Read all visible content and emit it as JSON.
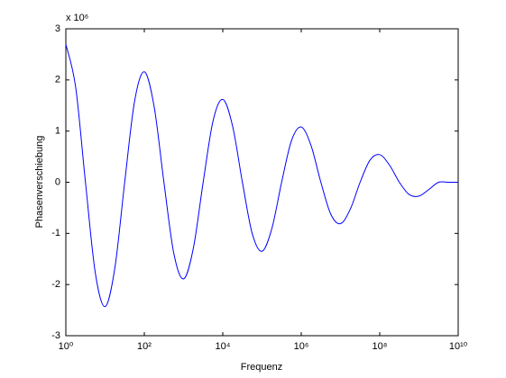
{
  "chart_data": {
    "type": "line",
    "xlabel": "Frequenz",
    "ylabel": "Phasenverschiebung",
    "y_multiplier": "x 10⁶",
    "xscale": "log",
    "color": "#0000ff",
    "x": [
      1,
      1.778,
      3.162,
      5.623,
      10,
      17.78,
      31.62,
      56.23,
      100,
      177.8,
      316.2,
      562.3,
      1000,
      1778,
      3162,
      5623,
      10000,
      17783,
      31623,
      56234,
      100000,
      177828,
      316228,
      562341,
      1000000,
      1778279,
      3162278,
      5623413,
      10000000,
      17782794,
      31622777,
      56234133,
      100000000,
      177827941,
      316227766,
      562341325,
      1000000000,
      1778279410,
      3162277660,
      5623413252,
      10000000000
    ],
    "series": [
      {
        "color": "#0000ff",
        "values": [
          2.7,
          1.861,
          0,
          -1.766,
          -2.43,
          -1.671,
          0,
          1.575,
          2.16,
          1.48,
          0,
          -1.384,
          -1.89,
          -1.289,
          0,
          1.193,
          1.62,
          1.098,
          0,
          -1.002,
          -1.35,
          -0.907,
          0,
          0.811,
          1.08,
          0.716,
          0,
          -0.62,
          -0.81,
          -0.525,
          0,
          0.43,
          0.54,
          0.334,
          0,
          -0.239,
          -0.27,
          -0.143,
          0,
          0,
          0
        ]
      }
    ],
    "xlim": [
      1,
      10000000000
    ],
    "xticks": [
      {
        "value": 1,
        "label": "10⁰"
      },
      {
        "value": 100,
        "label": "10²"
      },
      {
        "value": 10000,
        "label": "10⁴"
      },
      {
        "value": 1000000,
        "label": "10⁶"
      },
      {
        "value": 100000000,
        "label": "10⁸"
      },
      {
        "value": 10000000000,
        "label": "10¹⁰"
      }
    ],
    "ylim": [
      -3,
      3
    ],
    "yticks": [
      -3,
      -2,
      -1,
      0,
      1,
      2,
      3
    ],
    "grid": false
  }
}
